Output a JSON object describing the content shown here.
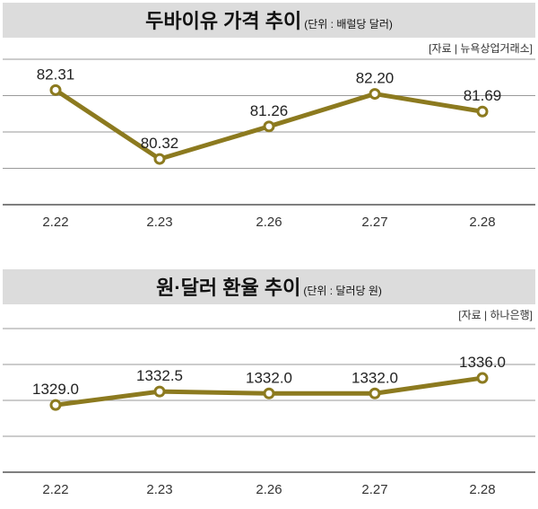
{
  "colors": {
    "line": "#8c7a1f",
    "title_bg": "#dcdcdc",
    "grid": "#9a9a9a"
  },
  "chart_data": [
    {
      "type": "line",
      "title": "두바이유 가격 추이",
      "unit": "(단위 : 배럴당 달러)",
      "source": "[자료 | 뉴욕상업거래소]",
      "categories": [
        "2.22",
        "2.23",
        "2.26",
        "2.27",
        "2.28"
      ],
      "values": [
        82.31,
        80.32,
        81.26,
        82.2,
        81.69
      ],
      "labels": [
        "82.31",
        "80.32",
        "81.26",
        "82.20",
        "81.69"
      ],
      "ylim": [
        79.0,
        83.2
      ],
      "grid": true
    },
    {
      "type": "line",
      "title": "원·달러 환율 추이",
      "unit": "(단위 : 달러당 원)",
      "source": "[자료 | 하나은행]",
      "categories": [
        "2.22",
        "2.23",
        "2.26",
        "2.27",
        "2.28"
      ],
      "values": [
        1329.0,
        1332.5,
        1332.0,
        1332.0,
        1336.0
      ],
      "labels": [
        "1329.0",
        "1332.5",
        "1332.0",
        "1332.0",
        "1336.0"
      ],
      "ylim": [
        1311.6,
        1348.8
      ],
      "grid": true
    }
  ]
}
